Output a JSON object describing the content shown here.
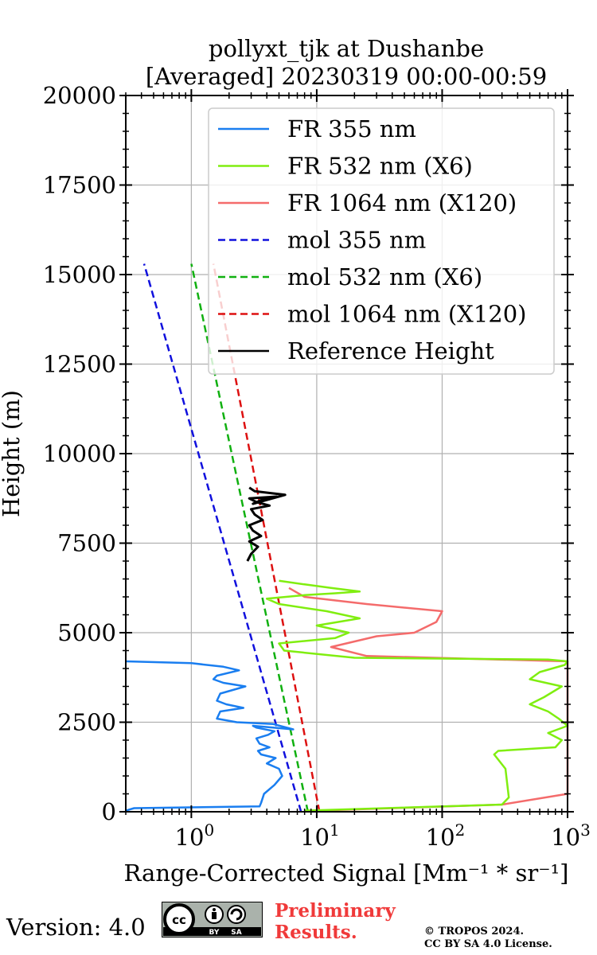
{
  "chart_data": {
    "type": "line",
    "title_line1": "pollyxt_tjk at Dushanbe",
    "title_line2": "[Averaged] 20230319 00:00-00:59",
    "xlabel": "Range-Corrected Signal [Mm⁻¹ * sr⁻¹]",
    "ylabel": "Height (m)",
    "xscale": "log",
    "xlim": [
      0.3,
      1000
    ],
    "ylim": [
      0,
      20000
    ],
    "yticks": [
      "0",
      "2500",
      "5000",
      "7500",
      "10000",
      "12500",
      "15000",
      "17500",
      "20000"
    ],
    "xtick_bases": [
      "10",
      "10",
      "10",
      "10"
    ],
    "xtick_exps": [
      "0",
      "1",
      "2",
      "3"
    ],
    "grid": true,
    "legend_position": "top-right",
    "series": [
      {
        "name": "FR 355 nm",
        "color": "#1a7ef0",
        "style": "solid",
        "x": [
          0.3,
          0.35,
          3.5,
          3.6,
          3.8,
          4.6,
          5.3,
          5.0,
          4.0,
          4.7,
          3.6,
          3.4,
          4.2,
          3.5,
          3.3,
          4.1,
          4.6,
          3.3,
          3.1,
          6.5,
          4.5,
          2.3,
          1.6,
          1.7,
          2.6,
          1.9,
          1.6,
          1.7,
          2.7,
          1.8,
          1.5,
          1.6,
          2.4,
          1.8,
          1.0,
          0.3
        ],
        "y": [
          30,
          100,
          150,
          250,
          500,
          750,
          1000,
          1200,
          1350,
          1500,
          1600,
          1700,
          1800,
          1900,
          2050,
          2150,
          2250,
          2350,
          2400,
          2300,
          2450,
          2500,
          2600,
          2800,
          2900,
          3000,
          3100,
          3300,
          3500,
          3600,
          3700,
          3800,
          3950,
          4050,
          4150,
          4200
        ]
      },
      {
        "name": "FR 532 nm (X6)",
        "color": "#80ee10",
        "style": "solid",
        "x": [
          8.0,
          300,
          340,
          330,
          320,
          260,
          280,
          800,
          900,
          700,
          1000,
          850,
          700,
          500,
          650,
          900,
          500,
          600,
          950,
          1000,
          700,
          20,
          5.5,
          5,
          14,
          18,
          10,
          22,
          12,
          5,
          4,
          8,
          14,
          22,
          13,
          8,
          5.0
        ],
        "y": [
          30,
          200,
          400,
          800,
          1200,
          1600,
          1700,
          1800,
          2000,
          2200,
          2400,
          2600,
          2800,
          3000,
          3200,
          3500,
          3700,
          3900,
          4100,
          4200,
          4250,
          4300,
          4500,
          4700,
          4850,
          5000,
          5200,
          5400,
          5600,
          5800,
          5950,
          6050,
          6100,
          6150,
          6250,
          6350,
          6450
        ]
      },
      {
        "name": "FR 1064 nm (X120)",
        "color": "#f46b6b",
        "style": "solid",
        "x": [
          10,
          300,
          1000,
          1000,
          25,
          13,
          30,
          60,
          90,
          100,
          25,
          8,
          6
        ],
        "y": [
          30,
          200,
          500,
          4200,
          4350,
          4600,
          4900,
          5000,
          5300,
          5600,
          5800,
          6000,
          6250
        ]
      },
      {
        "name": "mol 355 nm",
        "color": "#1010dd",
        "style": "dashed",
        "x": [
          7.5,
          0.42
        ],
        "y": [
          0,
          15300
        ]
      },
      {
        "name": "mol 532 nm (X6)",
        "color": "#10b010",
        "style": "dashed",
        "x": [
          8.5,
          1.0
        ],
        "y": [
          0,
          15300
        ]
      },
      {
        "name": "mol 1064 nm (X120)",
        "color": "#dd1010",
        "style": "dashed",
        "x": [
          10.5,
          1.5
        ],
        "y": [
          0,
          15300
        ]
      },
      {
        "name": "Reference Height",
        "color": "#000000",
        "style": "solid",
        "x": [
          2.8,
          3.0,
          3.4,
          2.9,
          3.6,
          3.1,
          2.9,
          3.7,
          3.2,
          3.0,
          4.2,
          3.3,
          2.9,
          4.8,
          3.6,
          3.1,
          5.6,
          3.2,
          2.9
        ],
        "y": [
          7000,
          7200,
          7400,
          7550,
          7700,
          7850,
          8000,
          8150,
          8300,
          8450,
          8550,
          8650,
          8750,
          8800,
          8700,
          8600,
          8850,
          8950,
          9050
        ]
      }
    ]
  },
  "footer": {
    "version": "Version: 4.0",
    "license_badge": {
      "cc": "cc",
      "by": "BY",
      "sa": "SA"
    },
    "prelim_line1": "Preliminary",
    "prelim_line2": "Results.",
    "prelim_color": "#f03a3a",
    "copyright_line1": "© TROPOS 2024.",
    "copyright_line2": "CC BY SA 4.0 License."
  }
}
